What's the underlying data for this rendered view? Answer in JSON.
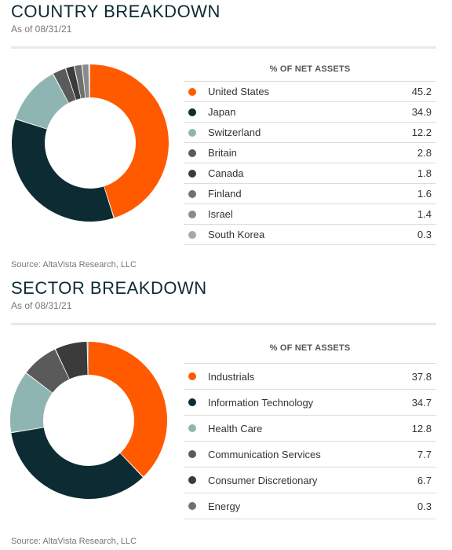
{
  "country": {
    "title": "COUNTRY BREAKDOWN",
    "as_of": "As of 08/31/21",
    "table_header": "% OF NET ASSETS",
    "source": "Source: AltaVista Research, LLC"
  },
  "sector": {
    "title": "SECTOR BREAKDOWN",
    "as_of": "As of 08/31/21",
    "table_header": "% OF NET ASSETS",
    "source": "Source: AltaVista Research, LLC"
  },
  "chart_data": [
    {
      "type": "pie",
      "variant": "donut",
      "title": "COUNTRY BREAKDOWN",
      "categories": [
        "United States",
        "Japan",
        "Switzerland",
        "Britain",
        "Canada",
        "Finland",
        "Israel",
        "South Korea"
      ],
      "values": [
        45.2,
        34.9,
        12.2,
        2.8,
        1.8,
        1.6,
        1.4,
        0.3
      ],
      "labels": [
        "45.2",
        "34.9",
        "12.2",
        "2.8",
        "1.8",
        "1.6",
        "1.4",
        "0.3"
      ],
      "colors": [
        "#ff5a00",
        "#0d2b33",
        "#8fb5b3",
        "#5a5a5a",
        "#3b3b3b",
        "#707070",
        "#8a8a8a",
        "#a8a8a8"
      ],
      "units": "% of net assets",
      "legend": "table-right"
    },
    {
      "type": "pie",
      "variant": "donut",
      "title": "SECTOR BREAKDOWN",
      "categories": [
        "Industrials",
        "Information Technology",
        "Health Care",
        "Communication Services",
        "Consumer Discretionary",
        "Energy"
      ],
      "values": [
        37.8,
        34.7,
        12.8,
        7.7,
        6.7,
        0.3
      ],
      "labels": [
        "37.8",
        "34.7",
        "12.8",
        "7.7",
        "6.7",
        "0.3"
      ],
      "colors": [
        "#ff5a00",
        "#0d2b33",
        "#8fb5b3",
        "#5a5a5a",
        "#3b3b3b",
        "#707070"
      ],
      "units": "% of net assets",
      "legend": "table-right"
    }
  ]
}
